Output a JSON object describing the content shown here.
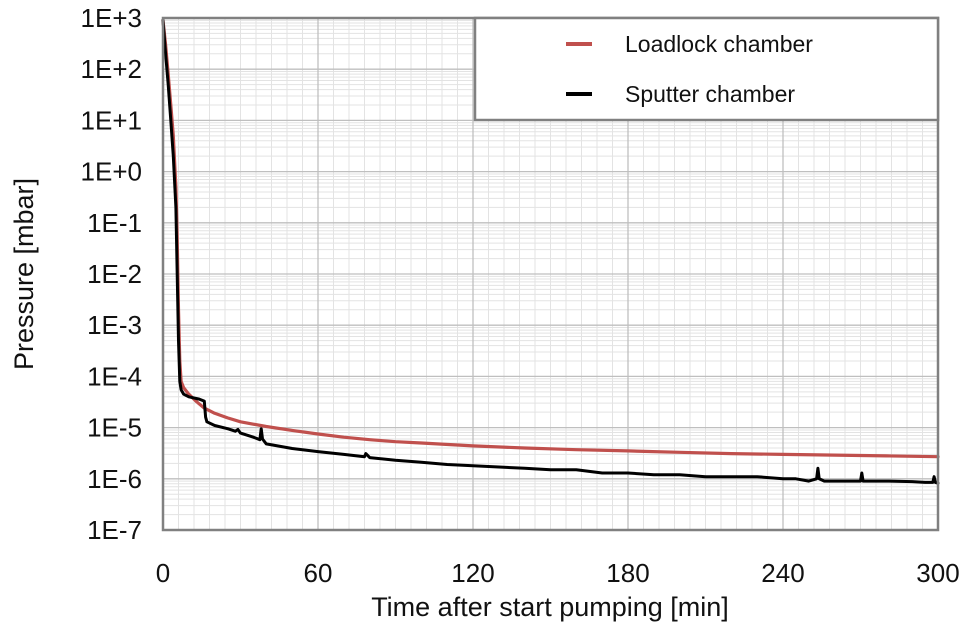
{
  "chart_data": {
    "type": "line",
    "xlabel": "Time after start pumping [min]",
    "ylabel": "Pressure [mbar]",
    "xlim": [
      0,
      300
    ],
    "ylim": [
      1e-07,
      1000
    ],
    "y_scale": "log",
    "x_ticks": [
      0,
      60,
      120,
      180,
      240,
      300
    ],
    "x_tick_labels": [
      "0",
      "60",
      "120",
      "180",
      "240",
      "300"
    ],
    "y_ticks": [
      1000.0,
      100.0,
      10.0,
      1.0,
      0.1,
      0.01,
      0.001,
      0.0001,
      1e-05,
      1e-06,
      1e-07
    ],
    "y_tick_labels": [
      "1E+3",
      "1E+2",
      "1E+1",
      "1E+0",
      "1E-1",
      "1E-2",
      "1E-3",
      "1E-4",
      "1E-5",
      "1E-6",
      "1E-7"
    ],
    "grid": true,
    "minor_grid_x_step": 6,
    "legend_position": "top-right",
    "series": [
      {
        "name": "Loadlock chamber",
        "color": "#c0504d",
        "x": [
          0,
          1,
          2,
          3,
          4,
          5,
          5.5,
          6,
          6.5,
          7,
          8,
          10,
          13,
          16,
          20,
          25,
          30,
          40,
          50,
          60,
          70,
          80,
          90,
          100,
          120,
          140,
          160,
          180,
          200,
          220,
          240,
          260,
          280,
          300
        ],
        "y": [
          900,
          300,
          80,
          20,
          5,
          0.5,
          0.05,
          0.002,
          0.0002,
          8e-05,
          6e-05,
          4.5e-05,
          3.2e-05,
          2.4e-05,
          1.9e-05,
          1.55e-05,
          1.3e-05,
          1.05e-05,
          8.8e-06,
          7.5e-06,
          6.5e-06,
          5.8e-06,
          5.3e-06,
          5e-06,
          4.4e-06,
          4e-06,
          3.7e-06,
          3.5e-06,
          3.3e-06,
          3.1e-06,
          3e-06,
          2.9e-06,
          2.8e-06,
          2.7e-06
        ]
      },
      {
        "name": "Sputter chamber",
        "color": "#000000",
        "x": [
          0,
          1,
          2,
          3,
          4,
          5,
          5.5,
          6,
          6.5,
          7,
          8,
          10,
          14,
          16,
          16.5,
          17,
          20,
          25,
          28,
          29,
          30,
          35,
          37.5,
          38,
          38.5,
          40,
          50,
          60,
          70,
          78,
          78.5,
          80,
          90,
          100,
          110,
          120,
          130,
          140,
          150,
          160,
          170,
          180,
          190,
          200,
          210,
          220,
          230,
          240,
          245,
          250,
          253,
          253.5,
          254,
          256,
          260,
          265,
          270,
          270.5,
          271,
          280,
          290,
          295,
          298,
          298.5,
          299,
          300
        ],
        "y": [
          900,
          200,
          50,
          10,
          2,
          0.2,
          0.01,
          0.0005,
          8e-05,
          5.5e-05,
          4.5e-05,
          4e-05,
          3.6e-05,
          3.3e-05,
          1.6e-05,
          1.3e-05,
          1.1e-05,
          9.5e-06,
          8.5e-06,
          9.2e-06,
          7.8e-06,
          6.5e-06,
          5.8e-06,
          9.5e-06,
          6e-06,
          4.8e-06,
          3.9e-06,
          3.4e-06,
          3e-06,
          2.7e-06,
          3.1e-06,
          2.6e-06,
          2.3e-06,
          2.1e-06,
          1.9e-06,
          1.8e-06,
          1.7e-06,
          1.6e-06,
          1.5e-06,
          1.5e-06,
          1.3e-06,
          1.3e-06,
          1.2e-06,
          1.2e-06,
          1.1e-06,
          1.1e-06,
          1.1e-06,
          1e-06,
          1e-06,
          9e-07,
          1e-06,
          1.6e-06,
          1e-06,
          9e-07,
          9e-07,
          9e-07,
          9e-07,
          1.3e-06,
          9e-07,
          9e-07,
          8.8e-07,
          8.5e-07,
          8.5e-07,
          1.1e-06,
          8.5e-07,
          8.2e-07
        ]
      }
    ]
  }
}
